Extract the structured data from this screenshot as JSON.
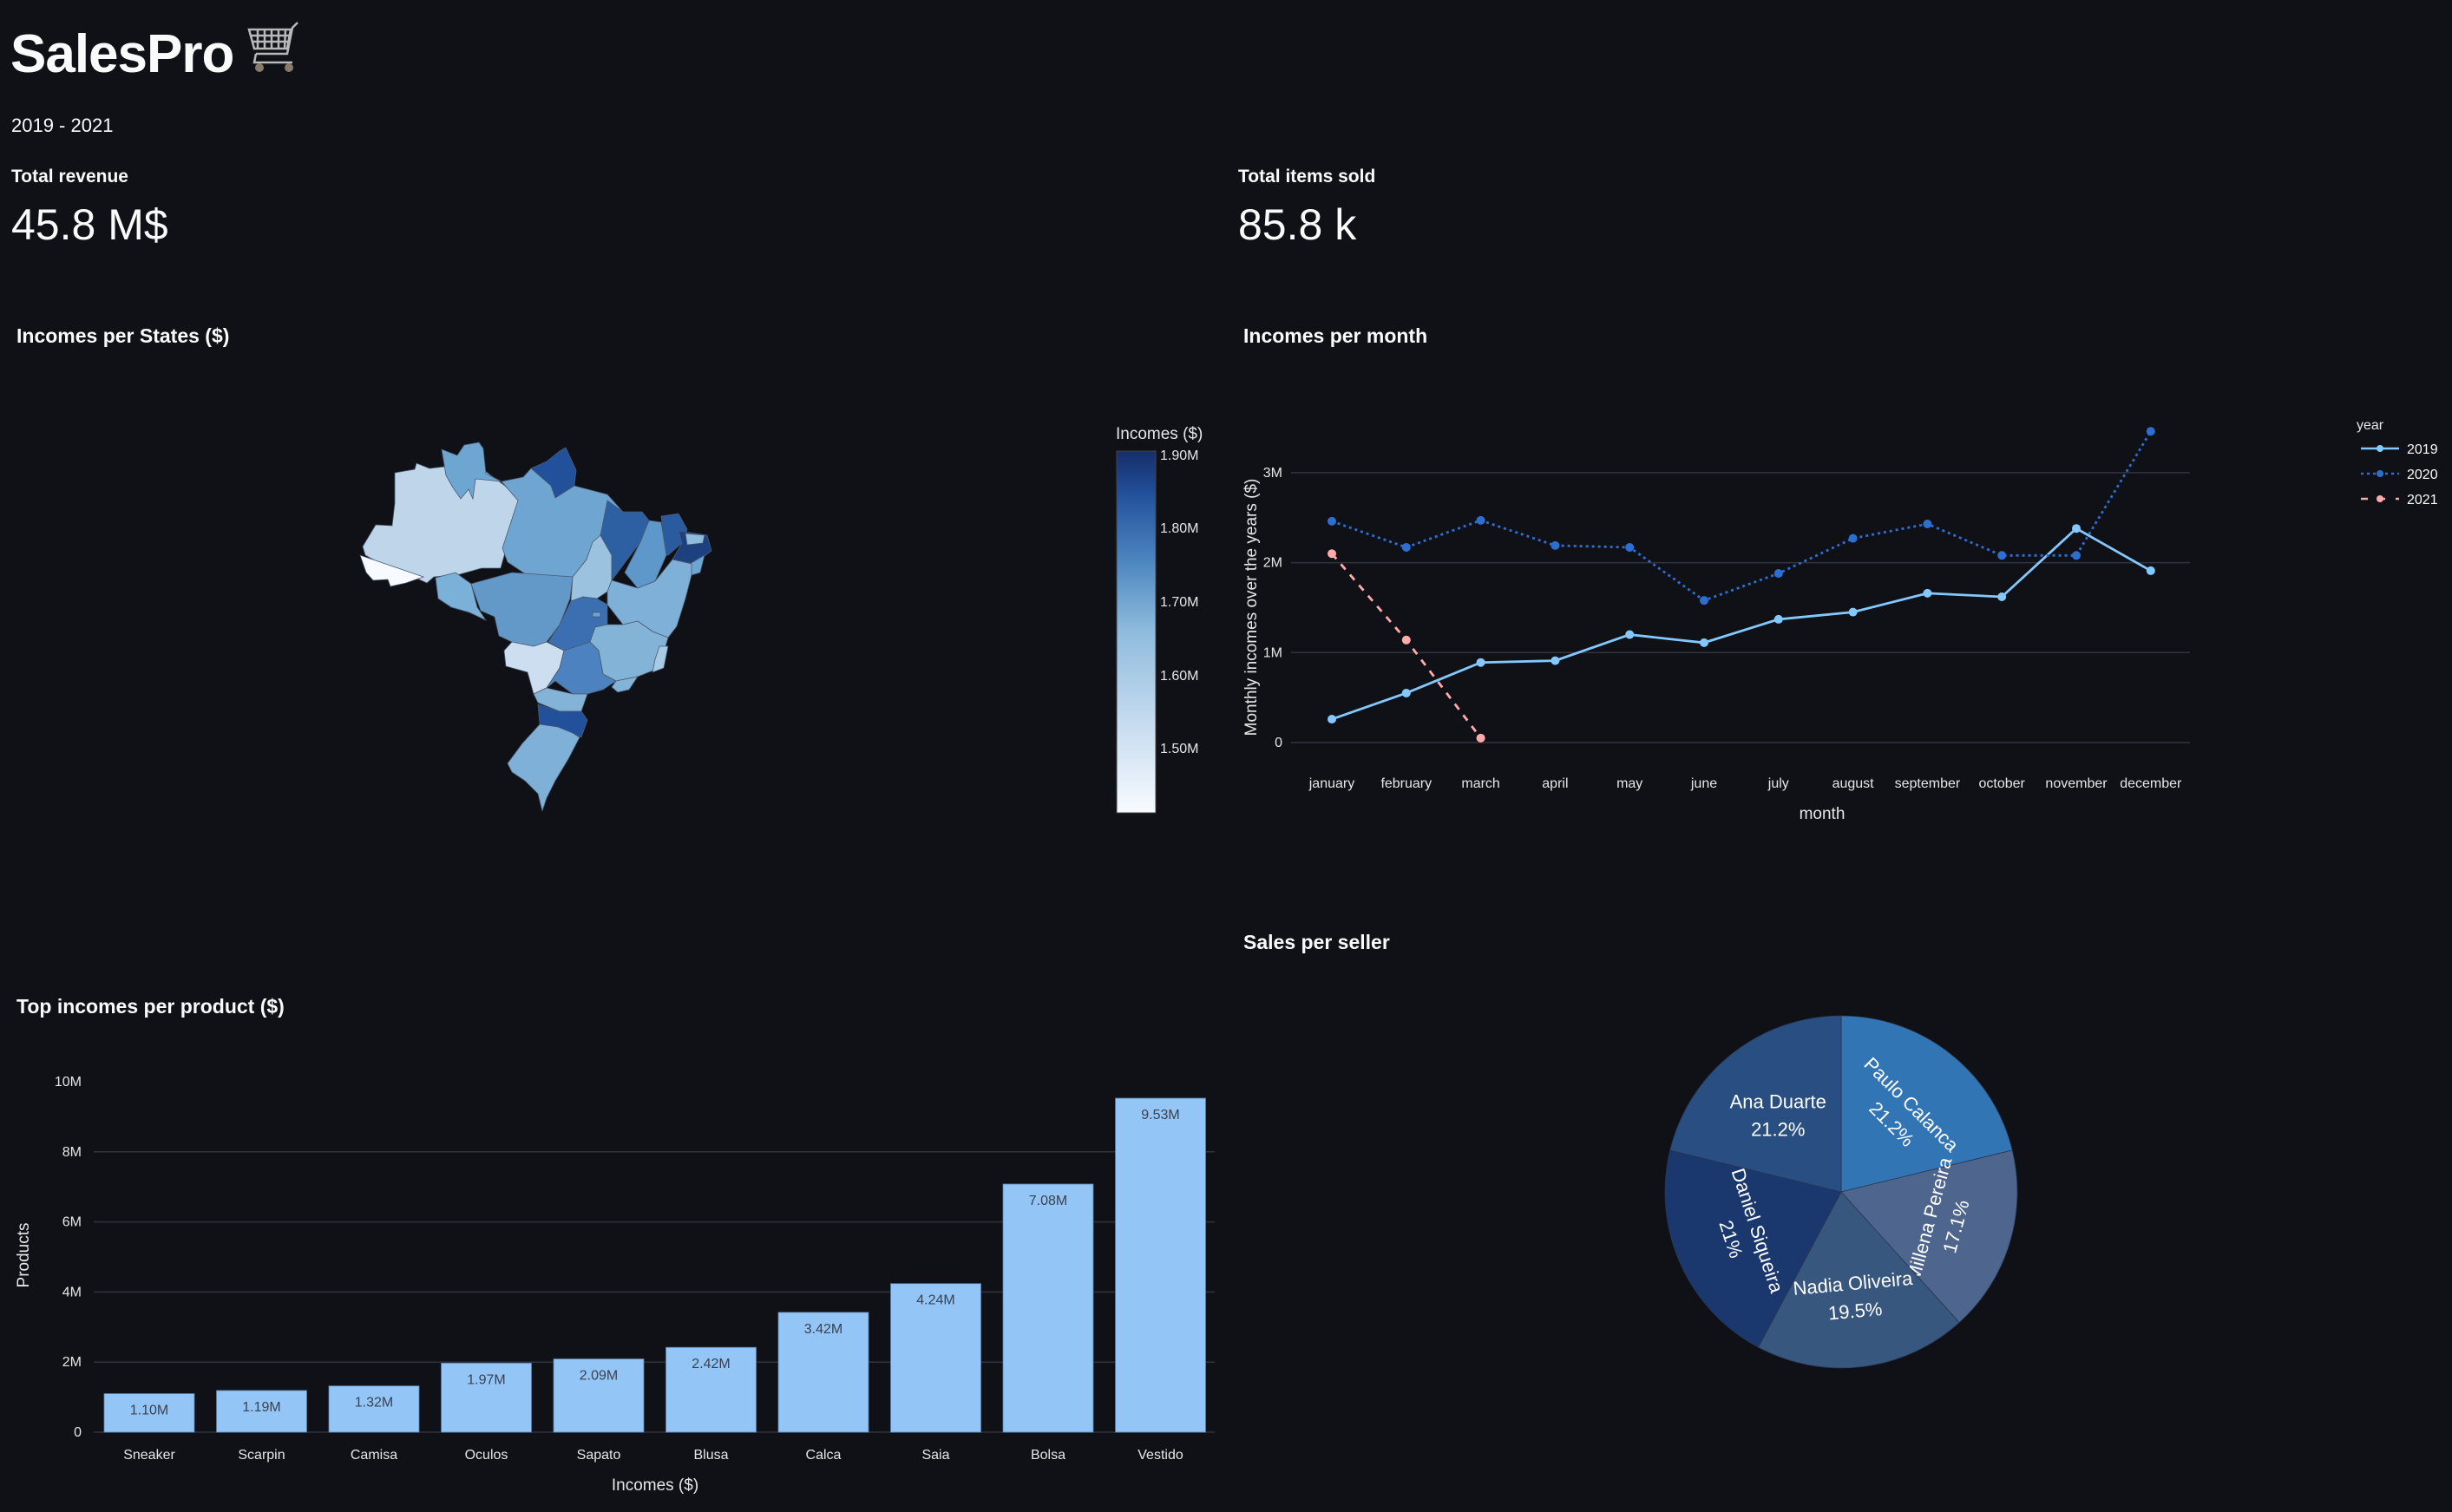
{
  "header": {
    "title": "SalesPro",
    "title_icon": "shopping-cart-icon",
    "period": "2019 - 2021"
  },
  "metrics": [
    {
      "label": "Total revenue",
      "value": "45.8 M$"
    },
    {
      "label": "Total items sold",
      "value": "85.8 k"
    }
  ],
  "sections": {
    "map": "Incomes per States ($)",
    "line": "Incomes per month",
    "bar": "Top incomes per product ($)",
    "pie": "Sales per seller"
  },
  "colors": {
    "background": "#0f1117",
    "series_2019": "#83c9ff",
    "series_2020": "#2c6fd1",
    "series_2021": "#ffabab",
    "bar": "#93c6f7",
    "grid": "#31333f"
  },
  "chart_data": [
    {
      "type": "heatmap",
      "title": "Incomes per States ($)",
      "subtype": "choropleth",
      "region": "Brazil states",
      "colorbar": {
        "title": "Incomes ($)",
        "ticks": [
          "1.90M",
          "1.80M",
          "1.70M",
          "1.60M",
          "1.50M"
        ],
        "range": [
          1.43,
          1.92
        ],
        "colorscale": [
          "#f7fbff",
          "#c6dbef",
          "#6baed6",
          "#2171b5",
          "#08306b"
        ]
      }
    },
    {
      "type": "line",
      "title": "Incomes per month",
      "xlabel": "month",
      "ylabel": "Monthly incomes over the years ($)",
      "ylim": [
        -0.35,
        3.5
      ],
      "yticks": [
        "0",
        "1M",
        "2M",
        "3M"
      ],
      "categories": [
        "january",
        "february",
        "march",
        "april",
        "may",
        "june",
        "july",
        "august",
        "september",
        "october",
        "november",
        "december"
      ],
      "legend_title": "year",
      "legend_position": "right",
      "series": [
        {
          "name": "2019",
          "dash": "solid",
          "values": [
            0.26,
            0.55,
            0.89,
            0.91,
            1.2,
            1.11,
            1.37,
            1.45,
            1.66,
            1.62,
            2.38,
            1.91
          ]
        },
        {
          "name": "2020",
          "dash": "dot",
          "values": [
            2.46,
            2.17,
            2.47,
            2.19,
            2.17,
            1.58,
            1.88,
            2.27,
            2.43,
            2.08,
            2.08,
            3.46
          ]
        },
        {
          "name": "2021",
          "dash": "dash",
          "values": [
            2.1,
            1.14,
            0.05
          ]
        }
      ],
      "units": "millions $"
    },
    {
      "type": "bar",
      "title": "Top incomes per product ($)",
      "xlabel": "Incomes ($)",
      "ylabel": "Products",
      "ylim": [
        0,
        10.3
      ],
      "yticks": [
        "0",
        "2M",
        "4M",
        "6M",
        "8M",
        "10M"
      ],
      "categories": [
        "Sneaker",
        "Scarpin",
        "Camisa",
        "Oculos",
        "Sapato",
        "Blusa",
        "Calca",
        "Saia",
        "Bolsa",
        "Vestido"
      ],
      "values": [
        1.1,
        1.19,
        1.32,
        1.97,
        2.09,
        2.42,
        3.42,
        4.24,
        7.08,
        9.53
      ],
      "labels": [
        "1.10M",
        "1.19M",
        "1.32M",
        "1.97M",
        "2.09M",
        "2.42M",
        "3.42M",
        "4.24M",
        "7.08M",
        "9.53M"
      ],
      "units": "millions $"
    },
    {
      "type": "pie",
      "title": "Sales per seller",
      "slices": [
        {
          "name": "Paulo Calanca",
          "pct": 21.2,
          "label": "21.2%",
          "color": "#3275b5"
        },
        {
          "name": "Millena Pereira",
          "pct": 17.1,
          "label": "17.1%",
          "color": "#4e668d"
        },
        {
          "name": "Nadia Oliveira",
          "pct": 19.5,
          "label": "19.5%",
          "color": "#37577e"
        },
        {
          "name": "Daniel Siqueira",
          "pct": 21.0,
          "label": "21%",
          "color": "#1a386d"
        },
        {
          "name": "Ana Duarte",
          "pct": 21.2,
          "label": "21.2%",
          "color": "#284e82"
        }
      ]
    }
  ]
}
